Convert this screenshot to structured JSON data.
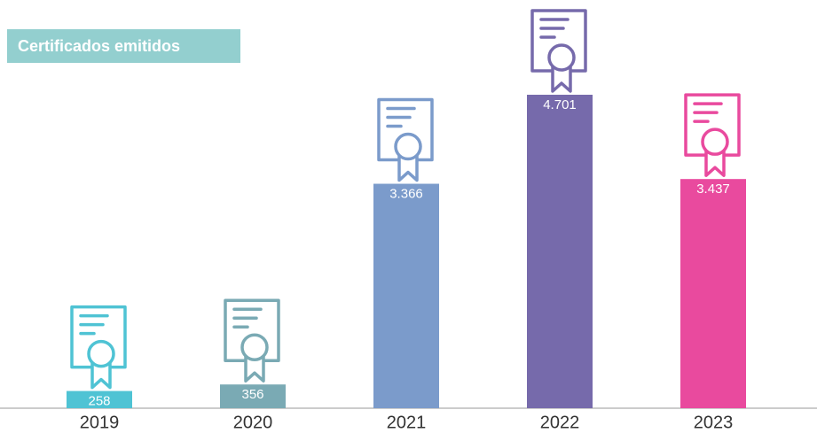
{
  "chart_data": {
    "type": "bar",
    "title": "Certificados emitidos",
    "categories": [
      "2019",
      "2020",
      "2021",
      "2022",
      "2023"
    ],
    "values": [
      258,
      356,
      3366,
      4701,
      3437
    ],
    "value_labels": [
      "258",
      "356",
      "3.366",
      "4.701",
      "3.437"
    ],
    "colors": [
      "#4fc3d4",
      "#7aaab4",
      "#7b9bcb",
      "#766aab",
      "#e94a9e"
    ]
  }
}
